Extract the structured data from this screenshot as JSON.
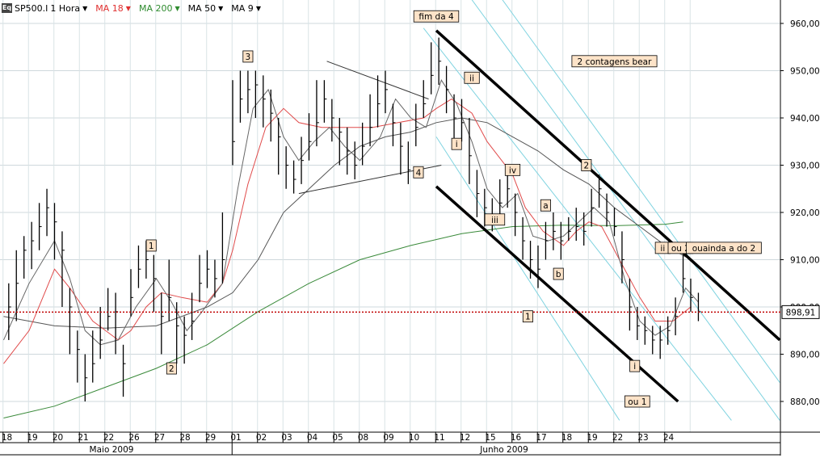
{
  "toolbar": {
    "symbol": "SP500.I",
    "interval": "1 Hora",
    "indicators": [
      {
        "label": "MA 18",
        "color": "#e03030"
      },
      {
        "label": "MA 200",
        "color": "#2e8b2e"
      },
      {
        "label": "MA 50",
        "color": "#000000"
      },
      {
        "label": "MA 9",
        "color": "#000000"
      }
    ],
    "logo_text": "Eq"
  },
  "chart_data": {
    "type": "candlestick",
    "y_ticks": [
      880,
      890,
      900,
      910,
      920,
      930,
      940,
      950,
      960
    ],
    "y_tick_labels": [
      "880,00",
      "890,00",
      "900,00",
      "910,00",
      "920,00",
      "930,00",
      "940,00",
      "950,00",
      "960,00"
    ],
    "ylim": [
      875.5,
      965
    ],
    "current_price": 898.91,
    "current_price_label": "898,91",
    "x_days": [
      "18",
      "19",
      "20",
      "21",
      "22",
      "26",
      "27",
      "28",
      "29",
      "01",
      "02",
      "03",
      "04",
      "05",
      "08",
      "09",
      "10",
      "11",
      "12",
      "15",
      "16",
      "17",
      "18",
      "19",
      "22",
      "23",
      "24"
    ],
    "months": [
      "Maio 2009",
      "Junho 2009"
    ],
    "bars": [
      [
        0.2,
        900,
        905,
        893
      ],
      [
        0.5,
        905,
        912,
        897
      ],
      [
        0.8,
        912,
        915,
        906
      ],
      [
        1.1,
        914,
        918,
        908
      ],
      [
        1.4,
        917,
        922,
        912
      ],
      [
        1.7,
        921,
        925,
        915
      ],
      [
        2.0,
        918,
        922,
        910
      ],
      [
        2.3,
        912,
        916,
        900
      ],
      [
        2.6,
        900,
        904,
        890
      ],
      [
        2.9,
        891,
        895,
        884
      ],
      [
        3.2,
        885,
        890,
        880
      ],
      [
        3.5,
        888,
        895,
        884
      ],
      [
        3.8,
        893,
        900,
        889
      ],
      [
        4.1,
        898,
        904,
        895
      ],
      [
        4.4,
        899,
        903,
        890
      ],
      [
        4.7,
        888,
        892,
        881
      ],
      [
        5.0,
        902,
        908,
        898
      ],
      [
        5.3,
        908,
        913,
        904
      ],
      [
        5.6,
        910,
        914,
        906
      ],
      [
        5.9,
        906,
        911,
        899
      ],
      [
        6.2,
        898,
        903,
        890
      ],
      [
        6.5,
        902,
        910,
        897
      ],
      [
        6.8,
        896,
        901,
        888
      ],
      [
        7.1,
        894,
        898,
        888
      ],
      [
        7.4,
        897,
        903,
        893
      ],
      [
        7.7,
        905,
        911,
        901
      ],
      [
        8.0,
        908,
        912,
        904
      ],
      [
        8.3,
        906,
        910,
        902
      ],
      [
        8.6,
        910,
        920,
        905
      ],
      [
        9.0,
        935,
        948,
        930
      ],
      [
        9.3,
        944,
        950,
        939
      ],
      [
        9.6,
        946,
        950,
        941
      ],
      [
        9.9,
        947,
        950,
        940
      ],
      [
        10.2,
        944,
        949,
        938
      ],
      [
        10.5,
        941,
        946,
        935
      ],
      [
        10.8,
        936,
        940,
        928
      ],
      [
        11.1,
        930,
        934,
        925
      ],
      [
        11.4,
        927,
        931,
        924
      ],
      [
        11.7,
        931,
        936,
        926
      ],
      [
        12.0,
        935,
        941,
        931
      ],
      [
        12.3,
        939,
        948,
        934
      ],
      [
        12.6,
        944,
        948,
        939
      ],
      [
        12.9,
        940,
        944,
        935
      ],
      [
        13.2,
        937,
        940,
        930
      ],
      [
        13.5,
        933,
        938,
        928
      ],
      [
        13.8,
        930,
        935,
        927
      ],
      [
        14.1,
        934,
        939,
        930
      ],
      [
        14.4,
        938,
        945,
        934
      ],
      [
        14.7,
        943,
        949,
        938
      ],
      [
        15.0,
        946,
        950,
        941
      ],
      [
        15.3,
        939,
        943,
        934
      ],
      [
        15.6,
        934,
        939,
        928
      ],
      [
        15.9,
        929,
        935,
        926
      ],
      [
        16.2,
        938,
        943,
        934
      ],
      [
        16.5,
        943,
        948,
        940
      ],
      [
        16.8,
        949,
        956,
        945
      ],
      [
        17.1,
        952,
        957,
        947
      ],
      [
        17.4,
        946,
        951,
        941
      ],
      [
        17.7,
        940,
        945,
        934
      ],
      [
        18.0,
        939,
        944,
        935
      ],
      [
        18.3,
        932,
        940,
        926
      ],
      [
        18.6,
        924,
        929,
        919
      ],
      [
        18.9,
        921,
        925,
        917
      ],
      [
        19.2,
        919,
        923,
        916
      ],
      [
        19.5,
        922,
        927,
        919
      ],
      [
        19.8,
        925,
        929,
        921
      ],
      [
        20.1,
        920,
        924,
        915
      ],
      [
        20.4,
        914,
        919,
        910
      ],
      [
        20.7,
        910,
        914,
        906
      ],
      [
        21.0,
        908,
        913,
        904
      ],
      [
        21.3,
        914,
        918,
        910
      ],
      [
        21.6,
        916,
        920,
        912
      ],
      [
        21.9,
        914,
        918,
        910
      ],
      [
        22.2,
        916,
        919,
        914
      ],
      [
        22.5,
        917,
        921,
        914
      ],
      [
        22.8,
        916,
        920,
        913
      ],
      [
        23.1,
        921,
        925,
        917
      ],
      [
        23.4,
        925,
        928,
        921
      ],
      [
        23.7,
        920,
        924,
        917
      ],
      [
        24.0,
        917,
        921,
        915
      ],
      [
        24.3,
        910,
        916,
        905
      ],
      [
        24.6,
        900,
        906,
        895
      ],
      [
        24.9,
        896,
        900,
        893
      ],
      [
        25.2,
        895,
        898,
        892
      ],
      [
        25.5,
        893,
        896,
        890
      ],
      [
        25.8,
        893,
        896,
        889
      ],
      [
        26.1,
        895,
        898,
        892
      ],
      [
        26.4,
        898,
        902,
        894
      ],
      [
        26.7,
        906,
        911,
        903
      ],
      [
        27.0,
        902,
        906,
        899
      ],
      [
        27.3,
        899,
        903,
        897
      ]
    ],
    "annotations": [
      {
        "text": "fim da 4",
        "d": 17.0,
        "p": 961.5
      },
      {
        "text": "3",
        "d": 9.6,
        "p": 953
      },
      {
        "text": "1",
        "d": 5.8,
        "p": 913
      },
      {
        "text": "2",
        "d": 6.6,
        "p": 887
      },
      {
        "text": "4",
        "d": 16.3,
        "p": 928.5
      },
      {
        "text": "ii",
        "d": 18.4,
        "p": 948.5
      },
      {
        "text": "i",
        "d": 17.8,
        "p": 934.5
      },
      {
        "text": "iv",
        "d": 20.0,
        "p": 929
      },
      {
        "text": "iii",
        "d": 19.3,
        "p": 918.5
      },
      {
        "text": "a",
        "d": 21.3,
        "p": 921.5
      },
      {
        "text": "b",
        "d": 21.8,
        "p": 907
      },
      {
        "text": "1",
        "d": 20.6,
        "p": 898
      },
      {
        "text": "2",
        "d": 22.9,
        "p": 930
      },
      {
        "text": "ii",
        "d": 25.9,
        "p": 912.5
      },
      {
        "text": "i",
        "d": 24.8,
        "p": 887.5
      },
      {
        "text": "ou 1",
        "d": 24.9,
        "p": 880
      },
      {
        "text": "ou 2",
        "d": 26.6,
        "p": 912.5
      },
      {
        "text": "ouainda a do 2",
        "d": 28.3,
        "p": 912.5
      },
      {
        "text": "2 contagens bear",
        "d": 24.0,
        "p": 952
      }
    ],
    "channel_lines": [
      [
        17.0,
        958.5,
        30.5,
        893
      ],
      [
        17.0,
        925.5,
        26.5,
        880
      ]
    ],
    "triangle_lines": [
      [
        12.7,
        952,
        16.7,
        944
      ],
      [
        11.6,
        924,
        17.2,
        930
      ]
    ],
    "cyan_lines": [
      [
        18.4,
        965,
        30.5,
        876
      ],
      [
        19.6,
        965,
        30.5,
        884
      ],
      [
        17.0,
        936,
        24.2,
        876
      ],
      [
        16.5,
        959,
        28.6,
        876
      ]
    ],
    "ma200": [
      [
        0.0,
        876.5
      ],
      [
        2,
        879
      ],
      [
        4,
        883
      ],
      [
        6,
        887
      ],
      [
        8,
        892
      ],
      [
        10,
        899
      ],
      [
        12,
        905
      ],
      [
        14,
        910
      ],
      [
        16,
        913
      ],
      [
        18,
        915.5
      ],
      [
        20,
        917
      ],
      [
        22,
        917.3
      ],
      [
        24,
        917.2
      ],
      [
        26,
        917.5
      ],
      [
        26.7,
        918
      ]
    ],
    "ma50": [
      [
        0.0,
        898
      ],
      [
        2,
        896
      ],
      [
        4,
        895.5
      ],
      [
        6,
        896
      ],
      [
        8,
        900
      ],
      [
        9,
        903
      ],
      [
        10,
        910
      ],
      [
        11,
        920
      ],
      [
        12,
        925
      ],
      [
        13,
        930
      ],
      [
        14,
        934
      ],
      [
        15,
        936
      ],
      [
        16,
        937
      ],
      [
        17,
        939
      ],
      [
        18,
        940
      ],
      [
        19,
        939
      ],
      [
        20,
        936
      ],
      [
        21,
        933
      ],
      [
        22,
        929
      ],
      [
        23,
        926
      ],
      [
        24,
        921
      ],
      [
        25,
        917
      ],
      [
        26,
        913
      ],
      [
        27,
        910
      ]
    ],
    "ma18": [
      [
        0.0,
        888
      ],
      [
        1,
        895
      ],
      [
        2,
        908
      ],
      [
        2.6,
        904
      ],
      [
        3.5,
        897
      ],
      [
        4.5,
        893
      ],
      [
        5.0,
        895
      ],
      [
        5.6,
        900
      ],
      [
        6.2,
        903
      ],
      [
        7,
        902
      ],
      [
        8,
        901
      ],
      [
        8.6,
        905
      ],
      [
        9,
        912
      ],
      [
        9.6,
        926
      ],
      [
        10.3,
        938
      ],
      [
        11,
        942
      ],
      [
        11.6,
        939
      ],
      [
        12.5,
        938
      ],
      [
        13.5,
        938
      ],
      [
        14.5,
        938
      ],
      [
        15.5,
        939
      ],
      [
        16.5,
        940
      ],
      [
        17,
        942
      ],
      [
        17.6,
        944
      ],
      [
        18.4,
        941
      ],
      [
        19,
        935
      ],
      [
        20,
        928
      ],
      [
        20.5,
        921
      ],
      [
        21.2,
        916
      ],
      [
        22,
        913
      ],
      [
        22.5,
        916
      ],
      [
        23,
        918
      ],
      [
        23.5,
        917
      ],
      [
        24.2,
        910
      ],
      [
        25,
        902
      ],
      [
        25.6,
        897
      ],
      [
        26.3,
        897
      ],
      [
        27,
        900
      ]
    ],
    "ma9": [
      [
        0.0,
        893
      ],
      [
        1,
        905
      ],
      [
        2,
        914
      ],
      [
        2.6,
        906
      ],
      [
        3.2,
        895
      ],
      [
        3.8,
        892
      ],
      [
        4.5,
        893
      ],
      [
        5.2,
        900
      ],
      [
        6,
        906
      ],
      [
        6.6,
        901
      ],
      [
        7.2,
        895
      ],
      [
        7.8,
        899
      ],
      [
        8.6,
        905
      ],
      [
        9.2,
        925
      ],
      [
        9.8,
        942
      ],
      [
        10.4,
        946
      ],
      [
        11,
        936
      ],
      [
        11.6,
        931
      ],
      [
        12.2,
        935
      ],
      [
        12.8,
        938
      ],
      [
        13.4,
        934
      ],
      [
        14,
        931
      ],
      [
        14.8,
        936
      ],
      [
        15.4,
        944
      ],
      [
        16,
        940
      ],
      [
        16.6,
        938
      ],
      [
        17.2,
        948
      ],
      [
        17.8,
        943
      ],
      [
        18.4,
        935
      ],
      [
        19,
        925
      ],
      [
        19.6,
        921
      ],
      [
        20.2,
        924
      ],
      [
        20.8,
        915
      ],
      [
        21.4,
        914
      ],
      [
        22,
        915
      ],
      [
        22.6,
        918
      ],
      [
        23.2,
        921
      ],
      [
        23.8,
        918
      ],
      [
        24.4,
        906
      ],
      [
        25,
        897
      ],
      [
        25.6,
        894
      ],
      [
        26.2,
        896
      ],
      [
        26.8,
        904
      ],
      [
        27.3,
        901
      ]
    ]
  }
}
